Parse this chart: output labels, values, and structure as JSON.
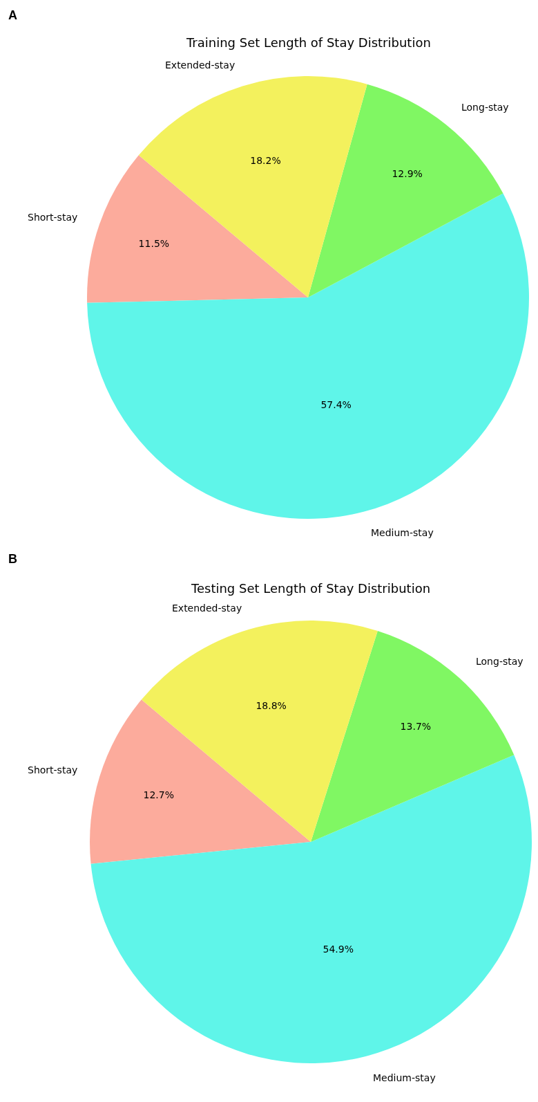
{
  "chart_data": [
    {
      "type": "pie",
      "title": "Training Set Length of Stay Distribution",
      "annotations": [
        "A"
      ],
      "categories": [
        "Short-stay",
        "Medium-stay",
        "Long-stay",
        "Extended-stay"
      ],
      "values": [
        11.5,
        57.4,
        12.9,
        18.2
      ],
      "value_labels": [
        "11.5%",
        "57.4%",
        "12.9%",
        "18.2%"
      ],
      "colors": [
        "#fcab9c",
        "#5ff5e9",
        "#80f763",
        "#f3f15d"
      ]
    },
    {
      "type": "pie",
      "title": "Testing Set Length of Stay Distribution",
      "annotations": [
        "B"
      ],
      "categories": [
        "Short-stay",
        "Medium-stay",
        "Long-stay",
        "Extended-stay"
      ],
      "values": [
        12.7,
        54.9,
        13.7,
        18.8
      ],
      "value_labels": [
        "12.7%",
        "54.9%",
        "13.7%",
        "18.8%"
      ],
      "colors": [
        "#fcab9c",
        "#5ff5e9",
        "#80f763",
        "#f3f15d"
      ]
    }
  ]
}
